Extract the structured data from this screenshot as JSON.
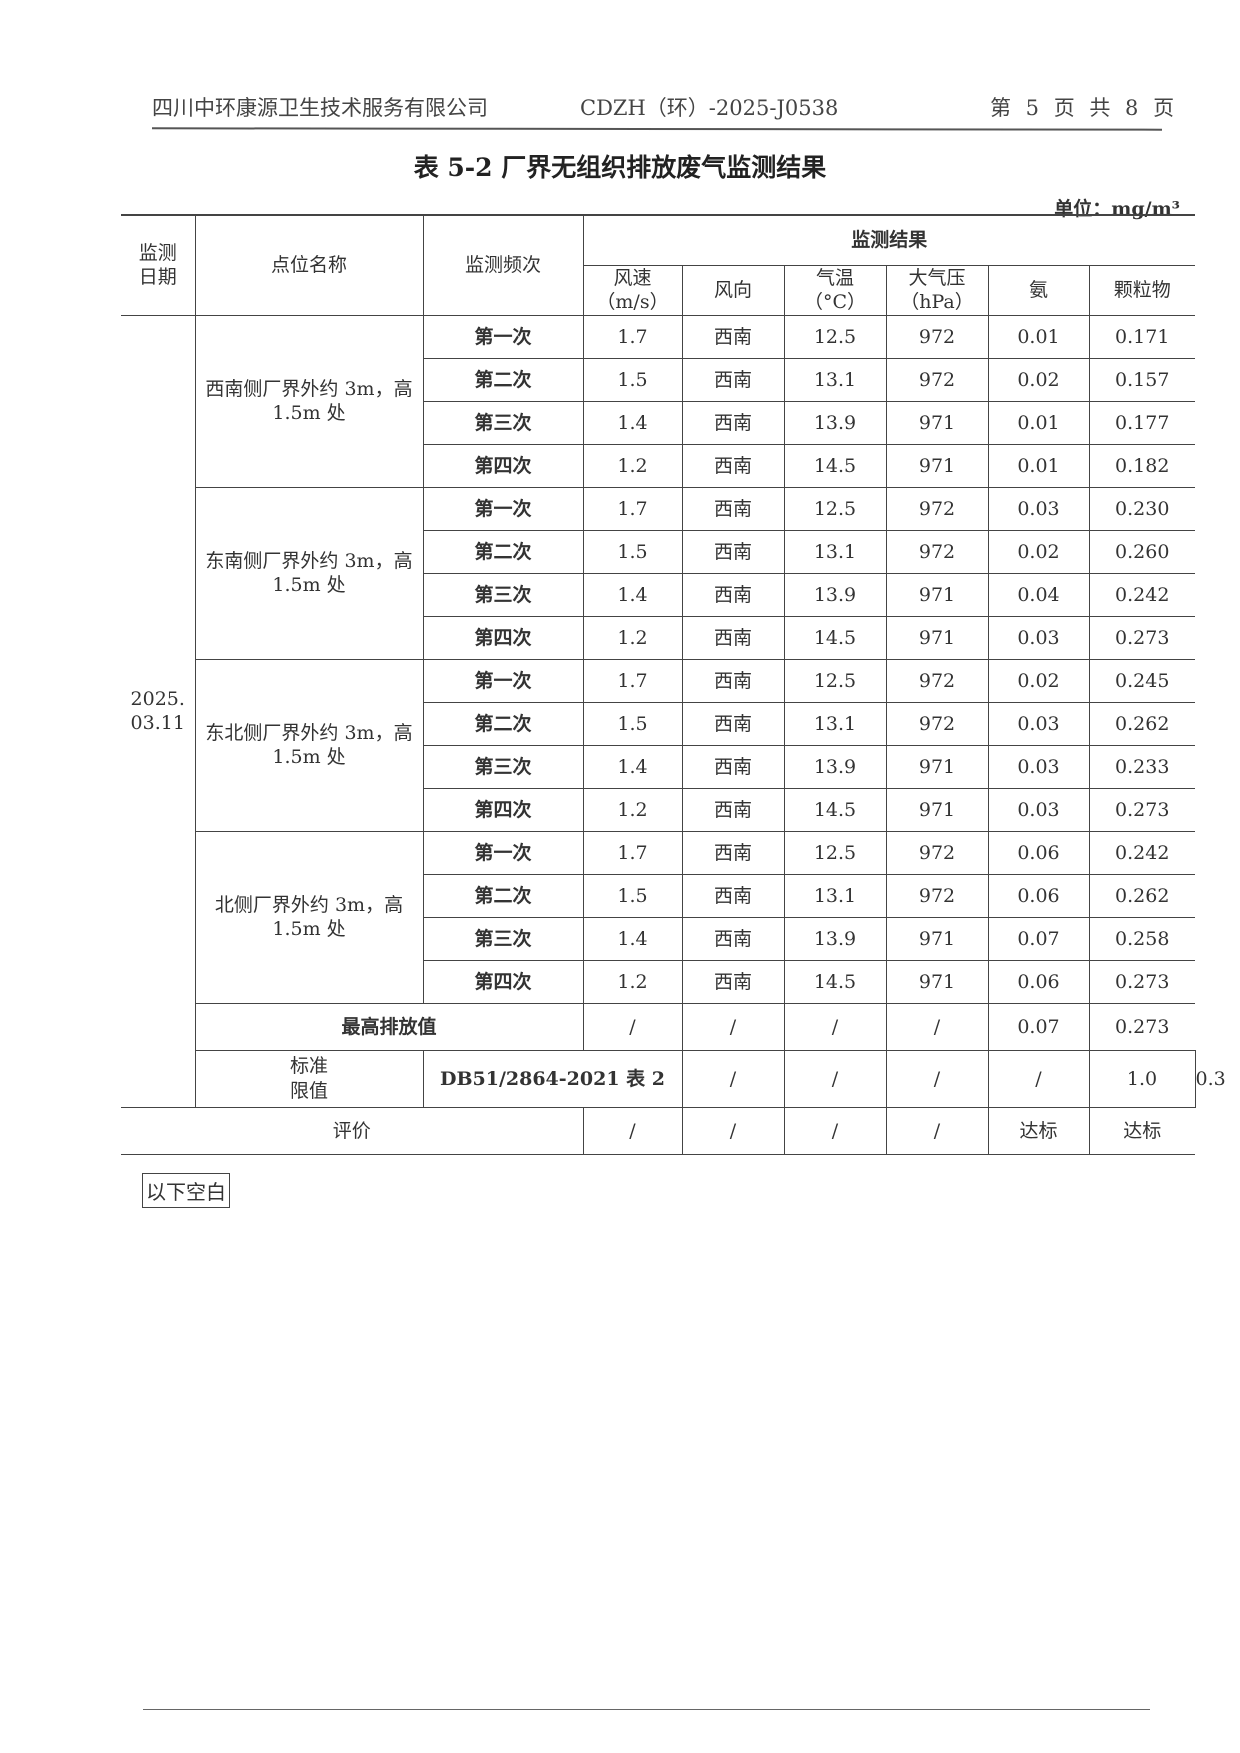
{
  "header": {
    "company": "四川中环康源卫生技术服务有限公司",
    "report_no": "CDZH（环）-2025-J0538",
    "page": "第 5 页 共 8 页"
  },
  "title": "表 5-2  厂界无组织排放废气监测结果",
  "unit": "单位：mg/m³",
  "columns": {
    "date": "监测\n日期",
    "site": "点位名称",
    "freq": "监测频次",
    "results": "监测结果",
    "wind_speed": "风速\n（m/s）",
    "wind_dir": "风向",
    "temp": "气温\n（°C）",
    "pressure": "大气压\n（hPa）",
    "ammonia": "氨",
    "particulate": "颗粒物"
  },
  "date": "2025.\n03.11",
  "sites": [
    {
      "name": "西南侧厂界外约 3m，高 1.5m 处",
      "rows": [
        [
          "第一次",
          "1.7",
          "西南",
          "12.5",
          "972",
          "0.01",
          "0.171"
        ],
        [
          "第二次",
          "1.5",
          "西南",
          "13.1",
          "972",
          "0.02",
          "0.157"
        ],
        [
          "第三次",
          "1.4",
          "西南",
          "13.9",
          "971",
          "0.01",
          "0.177"
        ],
        [
          "第四次",
          "1.2",
          "西南",
          "14.5",
          "971",
          "0.01",
          "0.182"
        ]
      ]
    },
    {
      "name": "东南侧厂界外约 3m，高 1.5m 处",
      "rows": [
        [
          "第一次",
          "1.7",
          "西南",
          "12.5",
          "972",
          "0.03",
          "0.230"
        ],
        [
          "第二次",
          "1.5",
          "西南",
          "13.1",
          "972",
          "0.02",
          "0.260"
        ],
        [
          "第三次",
          "1.4",
          "西南",
          "13.9",
          "971",
          "0.04",
          "0.242"
        ],
        [
          "第四次",
          "1.2",
          "西南",
          "14.5",
          "971",
          "0.03",
          "0.273"
        ]
      ]
    },
    {
      "name": "东北侧厂界外约 3m，高 1.5m 处",
      "rows": [
        [
          "第一次",
          "1.7",
          "西南",
          "12.5",
          "972",
          "0.02",
          "0.245"
        ],
        [
          "第二次",
          "1.5",
          "西南",
          "13.1",
          "972",
          "0.03",
          "0.262"
        ],
        [
          "第三次",
          "1.4",
          "西南",
          "13.9",
          "971",
          "0.03",
          "0.233"
        ],
        [
          "第四次",
          "1.2",
          "西南",
          "14.5",
          "971",
          "0.03",
          "0.273"
        ]
      ]
    },
    {
      "name": "北侧厂界外约 3m，高 1.5m 处",
      "rows": [
        [
          "第一次",
          "1.7",
          "西南",
          "12.5",
          "972",
          "0.06",
          "0.242"
        ],
        [
          "第二次",
          "1.5",
          "西南",
          "13.1",
          "972",
          "0.06",
          "0.262"
        ],
        [
          "第三次",
          "1.4",
          "西南",
          "13.9",
          "971",
          "0.07",
          "0.258"
        ],
        [
          "第四次",
          "1.2",
          "西南",
          "14.5",
          "971",
          "0.06",
          "0.273"
        ]
      ]
    }
  ],
  "max_row": {
    "label": "最高排放值",
    "values": [
      "/",
      "/",
      "/",
      "/",
      "0.07",
      "0.273"
    ]
  },
  "limit_row": {
    "label": "标准\n限值",
    "standard": "DB51/2864-2021 表 2",
    "values": [
      "/",
      "/",
      "/",
      "/",
      "1.0",
      "0.3"
    ]
  },
  "eval_row": {
    "label": "评价",
    "values": [
      "/",
      "/",
      "/",
      "/",
      "达标",
      "达标"
    ]
  },
  "end_note": "以下空白"
}
